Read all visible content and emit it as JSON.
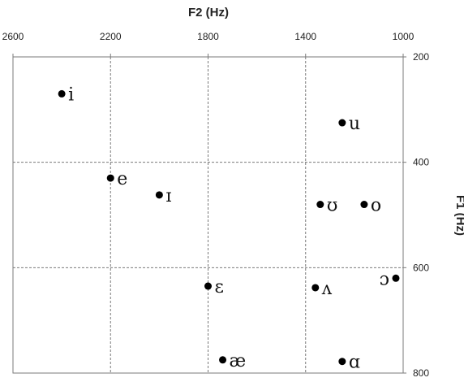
{
  "chart_data": {
    "type": "scatter",
    "title_x": "F2 (Hz)",
    "title_y": "F1 (Hz)",
    "x_axis": {
      "label": "F2 (Hz)",
      "range": [
        2600,
        1000
      ],
      "reversed": true,
      "position": "top",
      "ticks": [
        2600,
        2200,
        1800,
        1400,
        1000
      ]
    },
    "y_axis": {
      "label": "F1 (Hz)",
      "range": [
        200,
        800
      ],
      "reversed": true,
      "position": "right",
      "ticks": [
        200,
        400,
        600,
        800
      ]
    },
    "grid": true,
    "points": [
      {
        "label": "i",
        "x": 2400,
        "y": 270
      },
      {
        "label": "u",
        "x": 1250,
        "y": 325
      },
      {
        "label": "e",
        "x": 2200,
        "y": 430
      },
      {
        "label": "ɪ",
        "x": 2000,
        "y": 462
      },
      {
        "label": "ʊ",
        "x": 1340,
        "y": 480
      },
      {
        "label": "o",
        "x": 1160,
        "y": 480
      },
      {
        "label": "ɛ",
        "x": 1800,
        "y": 635
      },
      {
        "label": "ʌ",
        "x": 1360,
        "y": 638
      },
      {
        "label": "ɔ",
        "x": 1030,
        "y": 620
      },
      {
        "label": "æ",
        "x": 1740,
        "y": 775
      },
      {
        "label": "ɑ",
        "x": 1250,
        "y": 778
      }
    ]
  }
}
